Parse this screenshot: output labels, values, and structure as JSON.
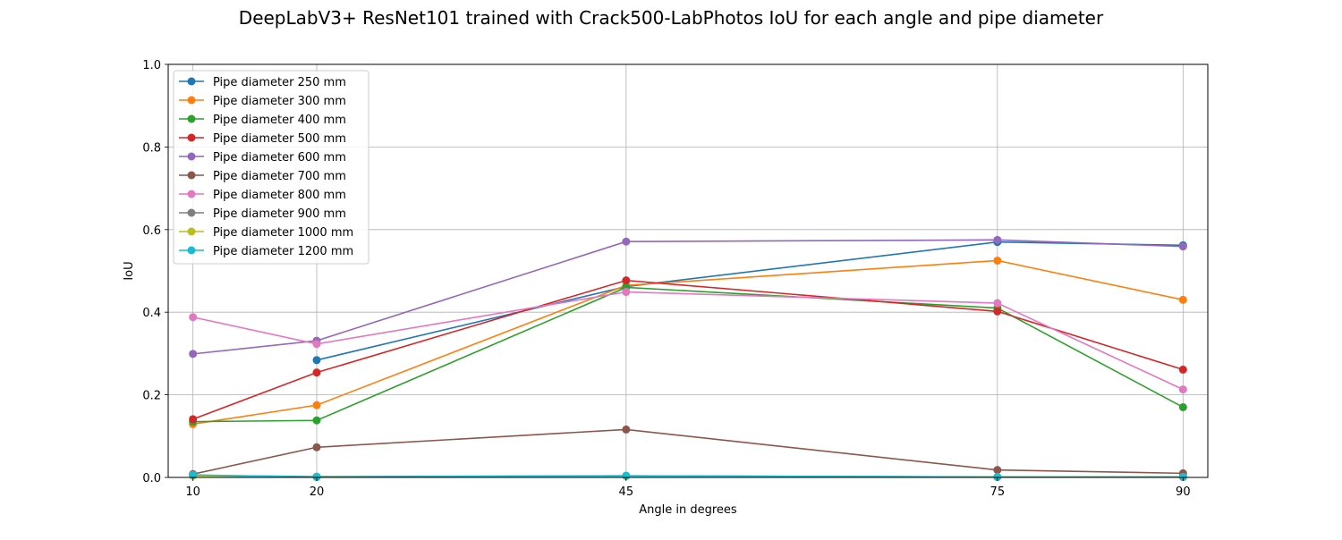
{
  "chart_data": {
    "type": "line",
    "title": "DeepLabV3+ ResNet101 trained with Crack500-LabPhotos IoU for each angle and pipe diameter",
    "xlabel": "Angle in degrees",
    "ylabel": "IoU",
    "x": [
      10,
      20,
      45,
      75,
      90
    ],
    "xticks": [
      "10",
      "20",
      "45",
      "75",
      "90"
    ],
    "xlim": [
      8,
      92
    ],
    "ylim": [
      0.0,
      1.0
    ],
    "yticks": [
      "0.0",
      "0.2",
      "0.4",
      "0.6",
      "0.8",
      "1.0"
    ],
    "grid": true,
    "legend_position": "top-left",
    "series": [
      {
        "name": "Pipe diameter 250 mm",
        "color": "#1f77b4",
        "values": [
          null,
          0.284,
          0.462,
          0.57,
          0.562
        ]
      },
      {
        "name": "Pipe diameter 300 mm",
        "color": "#ff7f0e",
        "values": [
          0.129,
          0.175,
          0.465,
          0.525,
          0.43
        ]
      },
      {
        "name": "Pipe diameter 400 mm",
        "color": "#2ca02c",
        "values": [
          0.135,
          0.138,
          0.46,
          0.41,
          0.17
        ]
      },
      {
        "name": "Pipe diameter 500 mm",
        "color": "#d62728",
        "values": [
          0.141,
          0.254,
          0.477,
          0.402,
          0.261
        ]
      },
      {
        "name": "Pipe diameter 600 mm",
        "color": "#9467bd",
        "values": [
          0.299,
          0.331,
          0.571,
          0.575,
          0.559
        ]
      },
      {
        "name": "Pipe diameter 700 mm",
        "color": "#8c564b",
        "values": [
          0.008,
          0.073,
          0.116,
          0.018,
          0.01
        ]
      },
      {
        "name": "Pipe diameter 800 mm",
        "color": "#e377c2",
        "values": [
          0.388,
          0.323,
          0.449,
          0.422,
          0.213
        ]
      },
      {
        "name": "Pipe diameter 900 mm",
        "color": "#7f7f7f",
        "values": [
          0.005,
          0.002,
          0.004,
          0.001,
          0.001
        ]
      },
      {
        "name": "Pipe diameter 1000 mm",
        "color": "#bcbd22",
        "values": [
          0.004,
          0.001,
          0.003,
          0.001,
          0.001
        ]
      },
      {
        "name": "Pipe diameter 1200 mm",
        "color": "#17becf",
        "values": [
          0.006,
          0.001,
          0.004,
          0.001,
          0.001
        ]
      }
    ]
  }
}
